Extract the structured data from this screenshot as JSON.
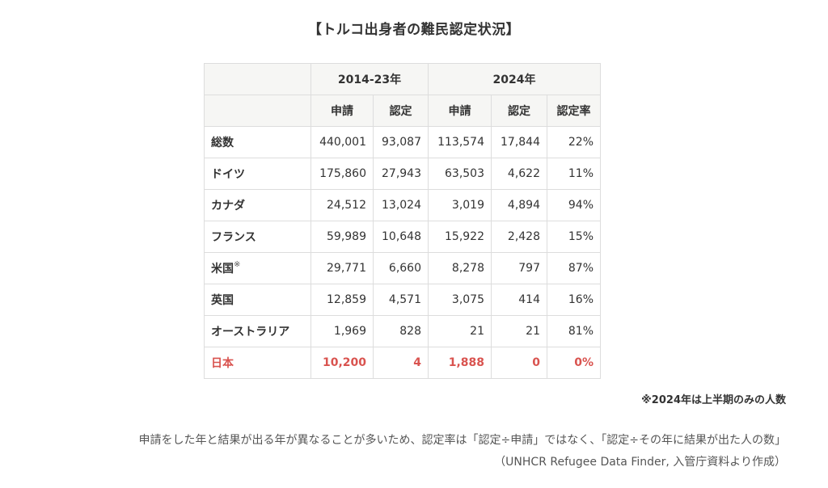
{
  "title": "【トルコ出身者の難民認定状況】",
  "table": {
    "period_headers": [
      "2014-23年",
      "2024年"
    ],
    "sub_headers": [
      "申請",
      "認定",
      "申請",
      "認定",
      "認定率"
    ],
    "rows": [
      {
        "country": "総数",
        "mark": "",
        "values": [
          "440,001",
          "93,087",
          "113,574",
          "17,844",
          "22%"
        ]
      },
      {
        "country": "ドイツ",
        "mark": "",
        "values": [
          "175,860",
          "27,943",
          "63,503",
          "4,622",
          "11%"
        ]
      },
      {
        "country": "カナダ",
        "mark": "",
        "values": [
          "24,512",
          "13,024",
          "3,019",
          "4,894",
          "94%"
        ]
      },
      {
        "country": "フランス",
        "mark": "",
        "values": [
          "59,989",
          "10,648",
          "15,922",
          "2,428",
          "15%"
        ]
      },
      {
        "country": "米国",
        "mark": "※",
        "values": [
          "29,771",
          "6,660",
          "8,278",
          "797",
          "87%"
        ]
      },
      {
        "country": "英国",
        "mark": "",
        "values": [
          "12,859",
          "4,571",
          "3,075",
          "414",
          "16%"
        ]
      },
      {
        "country": "オーストラリア",
        "mark": "",
        "values": [
          "1,969",
          "828",
          "21",
          "21",
          "81%"
        ]
      },
      {
        "country": "日本",
        "mark": "",
        "values": [
          "10,200",
          "4",
          "1,888",
          "0",
          "0%"
        ]
      }
    ]
  },
  "note": "※2024年は上半期のみの人数",
  "caption": "申請をした年と結果が出る年が異なることが多いため、認定率は「認定÷申請」ではなく、「認定÷その年に結果が出た人の数」",
  "source": "（UNHCR Refugee Data Finder, 入管庁資料より作成）",
  "colors": {
    "highlight": "#d9534f",
    "header_bg": "#f6f6f4",
    "border": "#dddddd"
  }
}
